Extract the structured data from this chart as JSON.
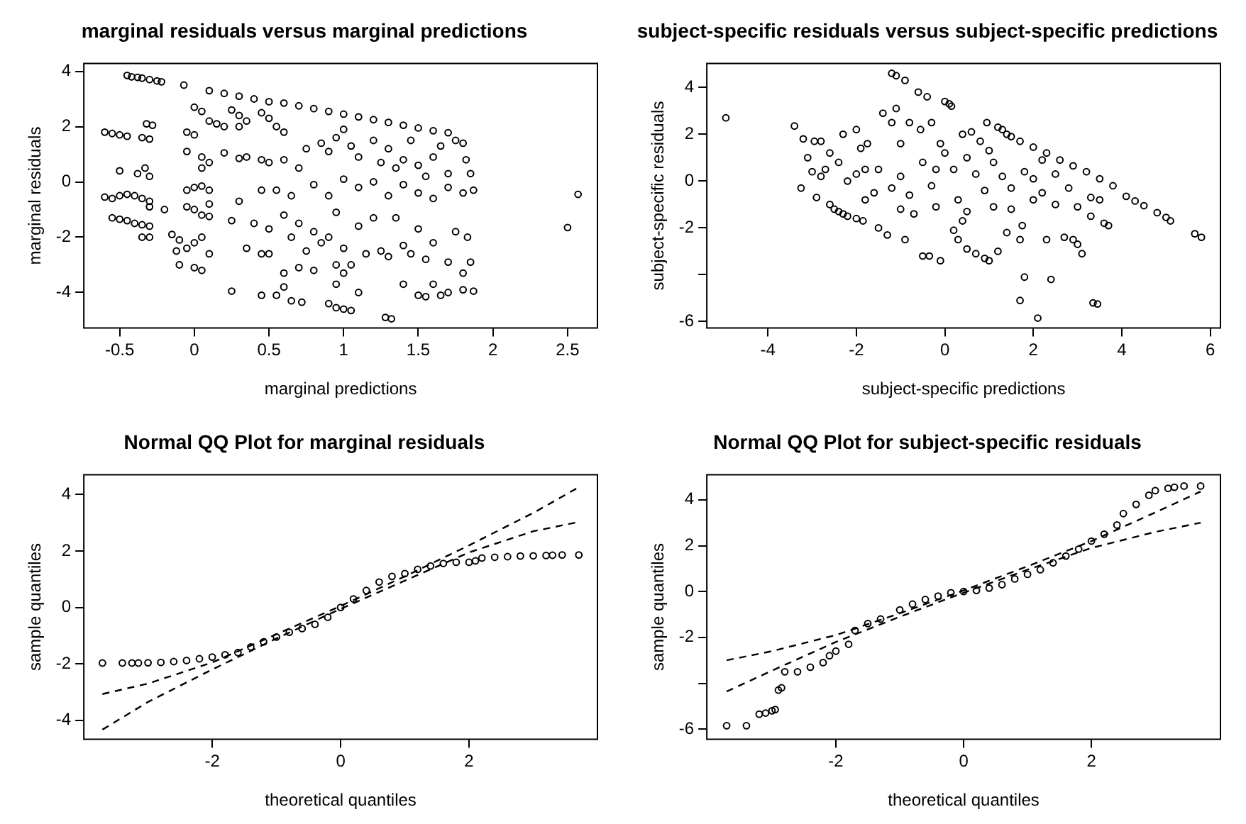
{
  "chart_data": [
    {
      "type": "scatter",
      "title": "marginal residuals versus marginal predictions",
      "xlabel": "marginal predictions",
      "ylabel": "marginal residuals",
      "xlim": [
        -0.74,
        2.7
      ],
      "ylim": [
        -5.28,
        4.28
      ],
      "xticks": [
        -0.5,
        0.0,
        0.5,
        1.0,
        1.5,
        2.0,
        2.5
      ],
      "yticks": [
        -4,
        -2,
        0,
        2,
        4
      ],
      "series": [
        {
          "marker": "circle",
          "color": "#000000",
          "x": [
            -0.45,
            -0.42,
            -0.38,
            -0.35,
            -0.3,
            -0.25,
            -0.22,
            -0.6,
            -0.55,
            -0.5,
            -0.45,
            -0.35,
            -0.3,
            -0.32,
            -0.28,
            -0.5,
            -0.38,
            -0.33,
            -0.3,
            -0.6,
            -0.55,
            -0.5,
            -0.45,
            -0.4,
            -0.35,
            -0.3,
            -0.3,
            -0.55,
            -0.5,
            -0.45,
            -0.4,
            -0.35,
            -0.3,
            -0.35,
            -0.3,
            -0.2,
            -0.07,
            0,
            0.05,
            0.1,
            0.15,
            -0.05,
            0,
            -0.05,
            0.05,
            0.1,
            0.05,
            -0.05,
            0,
            0.05,
            0.1,
            -0.05,
            0,
            0.05,
            0.1,
            0.1,
            -0.15,
            -0.1,
            -0.12,
            -0.05,
            0,
            0.05,
            0.1,
            0,
            0.05,
            -0.1,
            0.1,
            0.2,
            0.3,
            0.4,
            0.5,
            0.6,
            0.7,
            0.8,
            0.9,
            1,
            1.1,
            1.2,
            1.3,
            1.4,
            1.5,
            1.6,
            1.7,
            0.25,
            0.3,
            0.35,
            0.45,
            0.5,
            0.2,
            0.3,
            0.55,
            0.6,
            0.2,
            0.3,
            0.35,
            0.45,
            0.5,
            0.6,
            0.7,
            0.75,
            0.85,
            0.9,
            0.95,
            1,
            1.05,
            1.1,
            1.2,
            1.25,
            1.3,
            1.35,
            1.4,
            1.45,
            1.5,
            1.55,
            1.6,
            1.65,
            1.7,
            1.75,
            1.8,
            1.82,
            1.85,
            0.55,
            0.65,
            0.8,
            0.9,
            1,
            1.1,
            1.2,
            1.3,
            1.4,
            1.5,
            1.6,
            1.7,
            1.8,
            1.87,
            0.25,
            0.3,
            0.4,
            0.45,
            0.5,
            0.6,
            0.65,
            0.7,
            0.75,
            0.8,
            0.85,
            0.9,
            0.95,
            1,
            1.05,
            1.1,
            1.15,
            1.2,
            1.25,
            1.3,
            1.35,
            1.4,
            1.45,
            1.5,
            1.55,
            1.6,
            1.7,
            1.75,
            1.8,
            1.85,
            1.83,
            0.35,
            0.45,
            0.5,
            0.6,
            0.7,
            0.8,
            0.95,
            1,
            0.25,
            0.45,
            0.55,
            0.6,
            0.65,
            0.72,
            0.9,
            0.95,
            1,
            1.05,
            0.95,
            1.1,
            1.28,
            1.32,
            1.4,
            1.5,
            1.55,
            1.6,
            1.65,
            1.7,
            1.8,
            1.87,
            2.5,
            2.57
          ],
          "values": [
            3.85,
            3.8,
            3.78,
            3.75,
            3.7,
            3.65,
            3.62,
            1.8,
            1.75,
            1.7,
            1.65,
            1.6,
            1.55,
            2.1,
            2.05,
            0.4,
            0.3,
            0.5,
            0.2,
            -0.55,
            -0.6,
            -0.5,
            -0.45,
            -0.5,
            -0.6,
            -0.7,
            -0.9,
            -1.3,
            -1.35,
            -1.4,
            -1.5,
            -1.55,
            -1.6,
            -2.0,
            -2.0,
            -1.0,
            3.5,
            2.7,
            2.55,
            2.2,
            2.1,
            1.8,
            1.7,
            1.1,
            0.9,
            0.7,
            0.5,
            -0.3,
            -0.2,
            -0.15,
            -0.3,
            -0.9,
            -1,
            -1.2,
            -1.25,
            -0.8,
            -1.9,
            -2.1,
            -2.5,
            -2.4,
            -2.2,
            -2,
            -2.6,
            -3.1,
            -3.2,
            -3,
            3.3,
            3.2,
            3.1,
            3,
            2.9,
            2.85,
            2.75,
            2.65,
            2.55,
            2.45,
            2.35,
            2.25,
            2.15,
            2.05,
            1.95,
            1.85,
            1.78,
            2.6,
            2.4,
            2.2,
            2.5,
            2.3,
            2,
            2,
            2,
            1.8,
            1.05,
            0.85,
            0.9,
            0.8,
            0.7,
            0.8,
            0.5,
            1.2,
            1.4,
            1.1,
            1.6,
            1.9,
            1.3,
            0.9,
            1.5,
            0.7,
            1.2,
            0.5,
            0.8,
            1.5,
            0.6,
            0.2,
            0.9,
            1.3,
            0.3,
            1.5,
            1.4,
            0.8,
            0.3,
            -0.3,
            -0.5,
            -0.1,
            -0.5,
            0.1,
            -0.2,
            0,
            -0.5,
            -0.1,
            -0.4,
            -0.6,
            -0.2,
            -0.4,
            -0.3,
            -1.4,
            -0.7,
            -1.5,
            -0.3,
            -1.7,
            -1.2,
            -2,
            -1.5,
            -2.5,
            -1.8,
            -2.2,
            -2,
            -1.1,
            -2.4,
            -3,
            -1.6,
            -2.6,
            -1.3,
            -2.5,
            -2.7,
            -1.3,
            -2.3,
            -2.6,
            -1.7,
            -2.8,
            -2.2,
            -2.9,
            -1.8,
            -3.3,
            -2.9,
            -2,
            -2.4,
            -2.6,
            -2.6,
            -3.3,
            -3.1,
            -3.2,
            -3,
            -3.3,
            -3.95,
            -4.1,
            -4.1,
            -3.8,
            -4.3,
            -4.35,
            -4.4,
            -4.55,
            -4.6,
            -4.65,
            -3.7,
            -4,
            -4.9,
            -4.95,
            -3.7,
            -4.1,
            -4.15,
            -3.7,
            -4.1,
            -4,
            -3.9,
            -3.95,
            -1.65,
            -0.45
          ]
        }
      ]
    },
    {
      "type": "scatter",
      "title": "subject-specific residuals versus subject-specific predictions",
      "xlabel": "subject-specific predictions",
      "ylabel": "subject-specific residuals",
      "xlim": [
        -5.38,
        6.23
      ],
      "ylim": [
        -6.27,
        5.02
      ],
      "xticks": [
        -4,
        -2,
        0,
        2,
        4,
        6
      ],
      "yticks": [
        -6,
        {
          "value": -4,
          "label": null
        },
        -2,
        0,
        2,
        4
      ],
      "series": [
        {
          "marker": "circle",
          "color": "#000000",
          "x": [
            -4.95,
            -3.4,
            -3.25,
            -3.2,
            -3.1,
            -3,
            -2.95,
            -2.9,
            -2.8,
            -2.7,
            -2.6,
            -2.5,
            -2.4,
            -2.3,
            -2.2,
            -2,
            -1.85,
            -2.6,
            -2.4,
            -2.3,
            -2.2,
            -2,
            -1.9,
            -1.8,
            -1.75,
            -1.6,
            -1.5,
            -1.4,
            -1.3,
            -1.2,
            -1.2,
            -1.1,
            -1.1,
            -1,
            -0.9,
            -0.9,
            -0.8,
            -0.7,
            -0.6,
            -0.55,
            -0.5,
            -0.4,
            -0.35,
            -0.3,
            -0.2,
            -0.1,
            -0.1,
            0,
            0.1,
            0.15,
            0.2,
            0.3,
            0.4,
            0.4,
            0.5,
            0.6,
            0.7,
            0.8,
            0.9,
            0.95,
            1,
            1.2,
            1.3,
            1.4,
            1.5,
            1.2,
            1.1,
            1.4,
            1.5,
            1.7,
            1.75,
            1.8,
            1.7,
            2.1,
            2.4,
            3.35,
            3.45,
            2,
            2.3,
            2.5,
            2.7,
            2.9,
            3,
            3.1,
            3.3,
            3.5,
            3.6,
            3.7,
            1.7,
            2,
            2.3,
            2.6,
            2.9,
            3.2,
            3.5,
            3.8,
            4.1,
            4.3,
            4.5,
            4.8,
            5,
            5.1,
            5.65,
            5.8,
            -2,
            -1.5,
            -1.2,
            -1,
            -0.8,
            -0.5,
            -0.3,
            0,
            0.2,
            0.3,
            0.5,
            0.7,
            0.9,
            1.1,
            1.3,
            1.5,
            1.8,
            2,
            2.2,
            2.5,
            2.8,
            3,
            3.3,
            -1.8,
            -1,
            0.5,
            -0.2,
            1,
            -2.8,
            2.2
          ],
          "values": [
            2.7,
            2.35,
            -0.3,
            1.8,
            1,
            0.4,
            1.7,
            -0.7,
            1.7,
            0.5,
            -1,
            -1.2,
            -1.3,
            -1.4,
            -1.5,
            -1.6,
            -1.7,
            1.2,
            0.8,
            2,
            0,
            2.2,
            1.4,
            0.5,
            1.6,
            -0.5,
            -2,
            2.9,
            -2.3,
            2.5,
            4.6,
            4.5,
            3.1,
            1.6,
            4.3,
            -2.5,
            2.5,
            -1.4,
            3.8,
            2.2,
            -3.2,
            3.6,
            -3.2,
            2.5,
            -1.1,
            -3.4,
            1.6,
            3.4,
            3.3,
            3.2,
            -2.1,
            -2.5,
            -1.7,
            2,
            -2.9,
            2.1,
            -3.1,
            1.7,
            -3.3,
            2.5,
            -3.4,
            2.3,
            2.2,
            2,
            1.9,
            -3,
            -1.1,
            -2.2,
            -1.2,
            -2.5,
            -1.9,
            -4.1,
            -5.1,
            -5.85,
            -4.2,
            -5.2,
            -5.25,
            -0.8,
            -2.5,
            -1,
            -2.4,
            -2.5,
            -2.7,
            -3.1,
            -1.5,
            -0.8,
            -1.8,
            -1.9,
            1.7,
            1.45,
            1.2,
            0.9,
            0.65,
            0.4,
            0.1,
            -0.2,
            -0.65,
            -0.85,
            -1.05,
            -1.35,
            -1.55,
            -1.7,
            -2.25,
            -2.4,
            0.3,
            0.5,
            -0.3,
            0.2,
            -0.6,
            0.8,
            -0.2,
            1.2,
            0.5,
            -0.8,
            1,
            0.3,
            -0.4,
            0.8,
            0.2,
            -0.3,
            0.4,
            0.1,
            -0.5,
            0.3,
            -0.3,
            -1.1,
            -0.7,
            -0.8,
            -1.2,
            -1.3,
            0.5,
            1.3,
            0.2,
            0.9
          ]
        }
      ]
    },
    {
      "type": "scatter",
      "title": "Normal QQ Plot for marginal residuals",
      "xlabel": "theoretical quantiles",
      "ylabel": "sample quantiles",
      "xlim": [
        -4.0,
        4.0
      ],
      "ylim": [
        -4.67,
        4.7
      ],
      "xticks": [
        -2,
        0,
        2
      ],
      "yticks": [
        -4,
        -2,
        0,
        2,
        4
      ],
      "series": [
        {
          "marker": "circle",
          "color": "#000000",
          "x": [
            -3.71,
            -3.4,
            -3.25,
            -3.15,
            -3,
            -2.8,
            -2.6,
            -2.4,
            -2.2,
            -2,
            -1.8,
            -1.6,
            -1.4,
            -1.2,
            -1,
            -0.8,
            -0.6,
            -0.4,
            -0.2,
            0,
            0.2,
            0.4,
            0.6,
            0.8,
            1,
            1.2,
            1.4,
            1.6,
            1.8,
            2,
            2.1,
            2.2,
            2.4,
            2.6,
            2.8,
            3,
            3.2,
            3.3,
            3.45,
            3.71
          ],
          "values": [
            -1.97,
            -1.97,
            -1.97,
            -1.97,
            -1.96,
            -1.95,
            -1.92,
            -1.88,
            -1.82,
            -1.76,
            -1.68,
            -1.6,
            -1.4,
            -1.22,
            -1.05,
            -0.88,
            -0.75,
            -0.6,
            -0.35,
            0,
            0.3,
            0.6,
            0.9,
            1.1,
            1.2,
            1.35,
            1.47,
            1.56,
            1.6,
            1.6,
            1.65,
            1.75,
            1.78,
            1.8,
            1.82,
            1.83,
            1.84,
            1.85,
            1.86,
            1.86
          ]
        },
        {
          "type": "line",
          "color": "#000000",
          "line_style": "dashed",
          "x": [
            -3.71,
            -3,
            -2,
            -1,
            0,
            1,
            2,
            3,
            3.71
          ],
          "values": [
            -3.07,
            -2.7,
            -1.95,
            -0.95,
            0.05,
            1.1,
            2.2,
            3.35,
            4.26
          ]
        },
        {
          "type": "line",
          "color": "#000000",
          "line_style": "dashed",
          "x": [
            -3.71,
            -3,
            -2,
            -1,
            0,
            1,
            2,
            3,
            3.71
          ],
          "values": [
            -4.33,
            -3.35,
            -2.2,
            -1.1,
            -0.05,
            0.95,
            1.95,
            2.7,
            3.03
          ]
        }
      ]
    },
    {
      "type": "scatter",
      "title": "Normal QQ Plot for subject-specific residuals",
      "xlabel": "theoretical quantiles",
      "ylabel": "sample quantiles",
      "xlim": [
        -4.02,
        4.02
      ],
      "ylim": [
        -6.44,
        5.09
      ],
      "xticks": [
        -2,
        0,
        2
      ],
      "yticks": [
        -6,
        {
          "value": -4,
          "label": null
        },
        -2,
        0,
        2,
        4
      ],
      "series": [
        {
          "marker": "circle",
          "color": "#000000",
          "x": [
            -3.71,
            -3.4,
            -3.2,
            -3.1,
            -3,
            -2.95,
            -2.9,
            -2.85,
            -2.8,
            -2.6,
            -2.4,
            -2.2,
            -2.1,
            -2,
            -1.8,
            -1.7,
            -1.5,
            -1.3,
            -1,
            -0.8,
            -0.6,
            -0.4,
            -0.2,
            0,
            0.2,
            0.4,
            0.6,
            0.8,
            1,
            1.2,
            1.4,
            1.6,
            1.8,
            2,
            2.2,
            2.4,
            2.5,
            2.7,
            2.9,
            3,
            3.2,
            3.3,
            3.45,
            3.71
          ],
          "values": [
            -5.85,
            -5.85,
            -5.35,
            -5.3,
            -5.2,
            -5.15,
            -4.3,
            -4.2,
            -3.5,
            -3.5,
            -3.3,
            -3.1,
            -2.8,
            -2.6,
            -2.3,
            -1.7,
            -1.4,
            -1.2,
            -0.8,
            -0.55,
            -0.35,
            -0.2,
            -0.05,
            0,
            0.05,
            0.15,
            0.3,
            0.55,
            0.75,
            0.95,
            1.25,
            1.55,
            1.85,
            2.2,
            2.5,
            2.9,
            3.4,
            3.8,
            4.2,
            4.4,
            4.5,
            4.55,
            4.6,
            4.6
          ]
        },
        {
          "type": "line",
          "color": "#000000",
          "line_style": "dashed",
          "x": [
            -3.71,
            -3,
            -2,
            -1,
            0,
            1,
            2,
            3,
            3.71
          ],
          "values": [
            -3.0,
            -2.6,
            -1.9,
            -0.95,
            0.05,
            1.1,
            2.2,
            3.45,
            4.36
          ]
        },
        {
          "type": "line",
          "color": "#000000",
          "line_style": "dashed",
          "x": [
            -3.71,
            -3,
            -2,
            -1,
            0,
            1,
            2,
            3,
            3.71
          ],
          "values": [
            -4.36,
            -3.45,
            -2.2,
            -1.1,
            -0.05,
            0.95,
            1.9,
            2.6,
            3.0
          ]
        }
      ]
    }
  ]
}
